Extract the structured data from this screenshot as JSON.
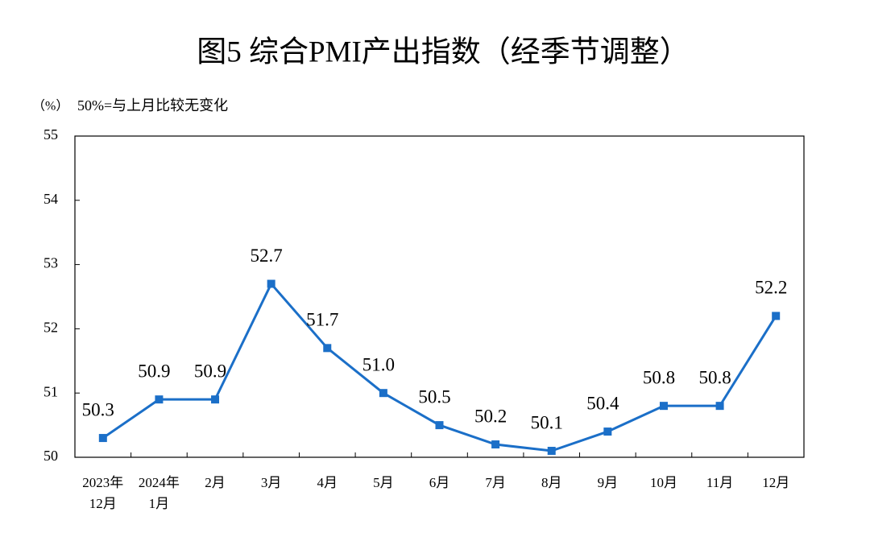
{
  "chart_data": {
    "type": "line",
    "title": "图5  综合PMI产出指数（经季节调整）",
    "unit": "（%）",
    "note": "50%=与上月比较无变化",
    "categories": [
      [
        "2023年",
        "12月"
      ],
      [
        "2024年",
        "1月"
      ],
      [
        "2月"
      ],
      [
        "3月"
      ],
      [
        "4月"
      ],
      [
        "5月"
      ],
      [
        "6月"
      ],
      [
        "7月"
      ],
      [
        "8月"
      ],
      [
        "9月"
      ],
      [
        "10月"
      ],
      [
        "11月"
      ],
      [
        "12月"
      ]
    ],
    "series": [
      {
        "name": "综合PMI产出指数",
        "color": "#1b6fc8",
        "values": [
          50.3,
          50.9,
          50.9,
          52.7,
          51.7,
          51.0,
          50.5,
          50.2,
          50.1,
          50.4,
          50.8,
          50.8,
          52.2
        ],
        "value_labels": [
          "50.3",
          "50.9",
          "50.9",
          "52.7",
          "51.7",
          "51.0",
          "50.5",
          "50.2",
          "50.1",
          "50.4",
          "50.8",
          "50.8",
          "52.2"
        ]
      }
    ],
    "ylim": [
      50,
      55
    ],
    "yticks": [
      50,
      51,
      52,
      53,
      54,
      55
    ]
  }
}
